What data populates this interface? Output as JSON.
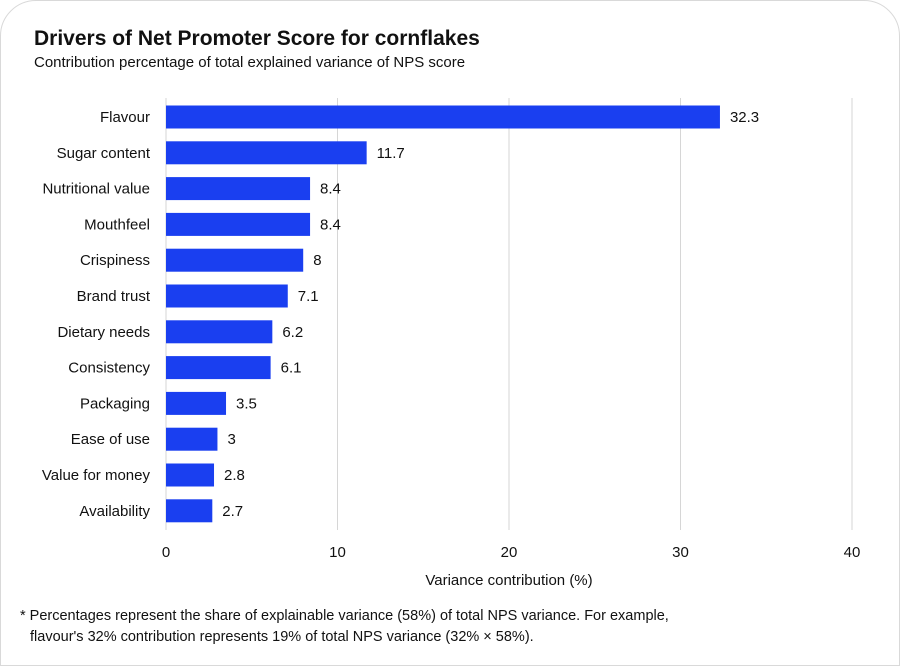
{
  "title": "Drivers of Net Promoter Score for cornflakes",
  "subtitle": "Contribution percentage of total explained variance of NPS score",
  "footnote": {
    "line1": "* Percentages represent the share of explainable variance (58%) of total NPS variance. For example,",
    "line2": "flavour's 32% contribution represents 19% of total NPS variance (32% × 58%)."
  },
  "chart_data": {
    "type": "bar",
    "orientation": "horizontal",
    "title": "Drivers of Net Promoter Score for cornflakes",
    "subtitle": "Contribution percentage of total explained variance of NPS score",
    "categories": [
      "Flavour",
      "Sugar content",
      "Nutritional value",
      "Mouthfeel",
      "Crispiness",
      "Brand trust",
      "Dietary needs",
      "Consistency",
      "Packaging",
      "Ease of use",
      "Value for money",
      "Availability"
    ],
    "values": [
      32.3,
      11.7,
      8.4,
      8.4,
      8,
      7.1,
      6.2,
      6.1,
      3.5,
      3,
      2.8,
      2.7
    ],
    "value_labels": [
      "32.3",
      "11.7",
      "8.4",
      "8.4",
      "8",
      "7.1",
      "6.2",
      "6.1",
      "3.5",
      "3",
      "2.8",
      "2.7"
    ],
    "xlabel": "Variance contribution (%)",
    "ylabel": "",
    "xlim": [
      0,
      40
    ],
    "xticks": [
      "0",
      "10",
      "20",
      "30",
      "40"
    ],
    "grid": "vertical",
    "bar_color": "#1a3ff0"
  }
}
